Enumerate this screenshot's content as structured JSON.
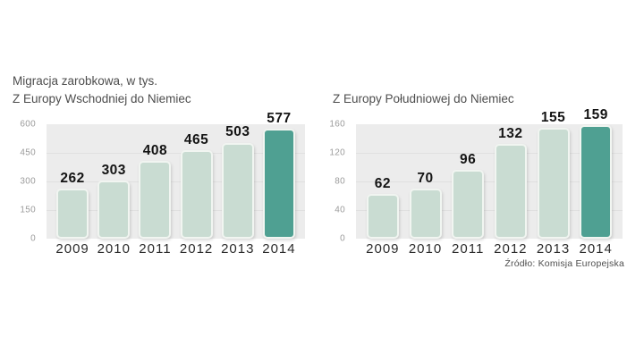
{
  "header": {
    "title": "Migracja zarobkowa, w tys."
  },
  "source_note": "Źródło: Komisja Europejska",
  "colors": {
    "bar": "#c9dcd2",
    "bar_highlight": "#4fa092",
    "bar_border": "#f1f5f1",
    "plot_background": "#ececec",
    "gridline": "#e0e0e0",
    "value_label": "#141414",
    "year_label": "#2b2b2b",
    "tick_label": "#9b9b9b",
    "title_text": "#4d4d4d",
    "source_text": "#4f4f4f"
  },
  "chart_data": [
    {
      "type": "bar",
      "title": "Z Europy Wschodniej do Niemiec",
      "categories": [
        "2009",
        "2010",
        "2011",
        "2012",
        "2013",
        "2014"
      ],
      "values": [
        262,
        303,
        408,
        465,
        503,
        577
      ],
      "ylim": [
        0,
        600
      ],
      "yticks": [
        600,
        450,
        300,
        150,
        0
      ],
      "highlight_index": 5,
      "grid": true,
      "legend": "none"
    },
    {
      "type": "bar",
      "title": "Z Europy Południowej do Niemiec",
      "categories": [
        "2009",
        "2010",
        "2011",
        "2012",
        "2013",
        "2014"
      ],
      "values": [
        62,
        70,
        96,
        132,
        155,
        159
      ],
      "ylim": [
        0,
        160
      ],
      "yticks": [
        160,
        120,
        80,
        40,
        0
      ],
      "highlight_index": 5,
      "grid": true,
      "legend": "none"
    }
  ]
}
